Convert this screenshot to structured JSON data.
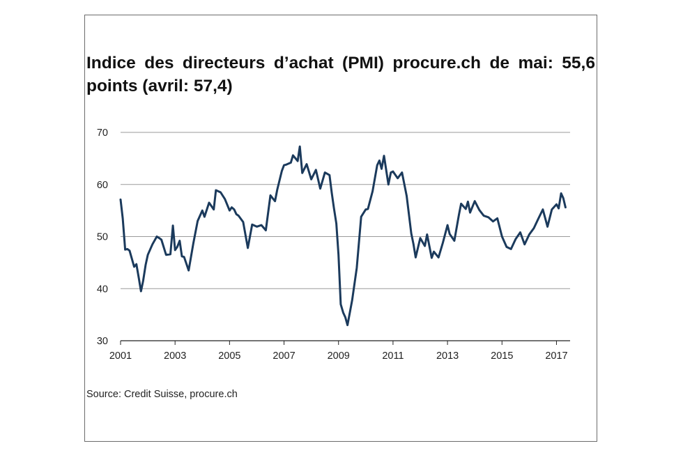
{
  "chart_data": {
    "type": "line",
    "title": "Indice des directeurs d’achat (PMI) procure.ch de mai: 55,6 points (avril: 57,4)",
    "xlabel": "",
    "ylabel": "",
    "xlim": [
      2001,
      2017.5
    ],
    "ylim": [
      30,
      70
    ],
    "yticks": [
      30,
      40,
      50,
      60,
      70
    ],
    "xticks": [
      2001,
      2003,
      2005,
      2007,
      2009,
      2011,
      2013,
      2015,
      2017
    ],
    "ytick_labels": [
      "30",
      "40",
      "50",
      "60",
      "70"
    ],
    "xtick_labels": [
      "2001",
      "2003",
      "2005",
      "2007",
      "2009",
      "2011",
      "2013",
      "2015",
      "2017"
    ],
    "grid": "horizontal",
    "line_color": "#1b3a5c",
    "series": [
      {
        "name": "",
        "x": [
          2001.0,
          2001.08,
          2001.17,
          2001.25,
          2001.33,
          2001.5,
          2001.58,
          2001.67,
          2001.75,
          2001.83,
          2001.92,
          2002.0,
          2002.17,
          2002.33,
          2002.42,
          2002.5,
          2002.67,
          2002.83,
          2002.92,
          2003.0,
          2003.08,
          2003.17,
          2003.25,
          2003.33,
          2003.5,
          2003.67,
          2003.83,
          2004.0,
          2004.08,
          2004.25,
          2004.42,
          2004.5,
          2004.67,
          2004.83,
          2005.0,
          2005.08,
          2005.17,
          2005.25,
          2005.33,
          2005.5,
          2005.67,
          2005.83,
          2006.0,
          2006.17,
          2006.33,
          2006.5,
          2006.67,
          2006.75,
          2006.92,
          2007.0,
          2007.08,
          2007.25,
          2007.33,
          2007.5,
          2007.58,
          2007.67,
          2007.83,
          2008.0,
          2008.17,
          2008.33,
          2008.5,
          2008.67,
          2008.75,
          2008.83,
          2008.92,
          2009.0,
          2009.08,
          2009.17,
          2009.25,
          2009.33,
          2009.5,
          2009.67,
          2009.83,
          2010.0,
          2010.08,
          2010.25,
          2010.42,
          2010.5,
          2010.58,
          2010.67,
          2010.83,
          2010.92,
          2011.0,
          2011.17,
          2011.33,
          2011.5,
          2011.67,
          2011.75,
          2011.83,
          2012.0,
          2012.17,
          2012.25,
          2012.42,
          2012.5,
          2012.67,
          2012.83,
          2013.0,
          2013.08,
          2013.25,
          2013.42,
          2013.5,
          2013.67,
          2013.75,
          2013.83,
          2014.0,
          2014.17,
          2014.33,
          2014.5,
          2014.67,
          2014.83,
          2015.0,
          2015.17,
          2015.33,
          2015.5,
          2015.67,
          2015.83,
          2016.0,
          2016.17,
          2016.33,
          2016.5,
          2016.67,
          2016.83,
          2017.0,
          2017.08,
          2017.17,
          2017.25,
          2017.33
        ],
        "values": [
          57.1,
          53.5,
          47.5,
          47.6,
          47.3,
          44.2,
          44.7,
          42.0,
          39.5,
          41.5,
          44.6,
          46.5,
          48.5,
          50.0,
          49.7,
          49.4,
          46.5,
          46.6,
          52.1,
          47.4,
          48.0,
          49.2,
          46.2,
          46.1,
          43.5,
          48.7,
          53.0,
          55.0,
          53.8,
          56.5,
          55.2,
          58.9,
          58.5,
          57.2,
          55.0,
          55.6,
          55.2,
          54.3,
          54.0,
          52.8,
          47.8,
          52.3,
          51.9,
          52.2,
          51.2,
          57.9,
          56.8,
          59.0,
          62.6,
          63.7,
          63.8,
          64.2,
          65.6,
          64.5,
          67.3,
          62.2,
          63.9,
          61.0,
          62.8,
          59.2,
          62.3,
          61.8,
          58.4,
          55.5,
          52.5,
          46.5,
          37.0,
          35.4,
          34.5,
          33.0,
          37.8,
          44.0,
          53.8,
          55.2,
          55.3,
          58.7,
          63.7,
          64.6,
          63.0,
          65.5,
          60.0,
          62.3,
          62.5,
          61.2,
          62.3,
          57.8,
          50.6,
          48.6,
          46.0,
          49.7,
          48.2,
          50.4,
          45.9,
          47.1,
          46.0,
          48.8,
          52.2,
          50.5,
          49.2,
          54.2,
          56.3,
          55.3,
          56.7,
          54.6,
          56.8,
          55.1,
          54.0,
          53.7,
          52.9,
          53.5,
          50.0,
          48.0,
          47.6,
          49.5,
          50.8,
          48.5,
          50.4,
          51.6,
          53.4,
          55.2,
          51.9,
          55.2,
          56.2,
          55.4,
          58.3,
          57.4,
          55.6
        ]
      }
    ]
  },
  "source": "Source: Credit Suisse, procure.ch"
}
